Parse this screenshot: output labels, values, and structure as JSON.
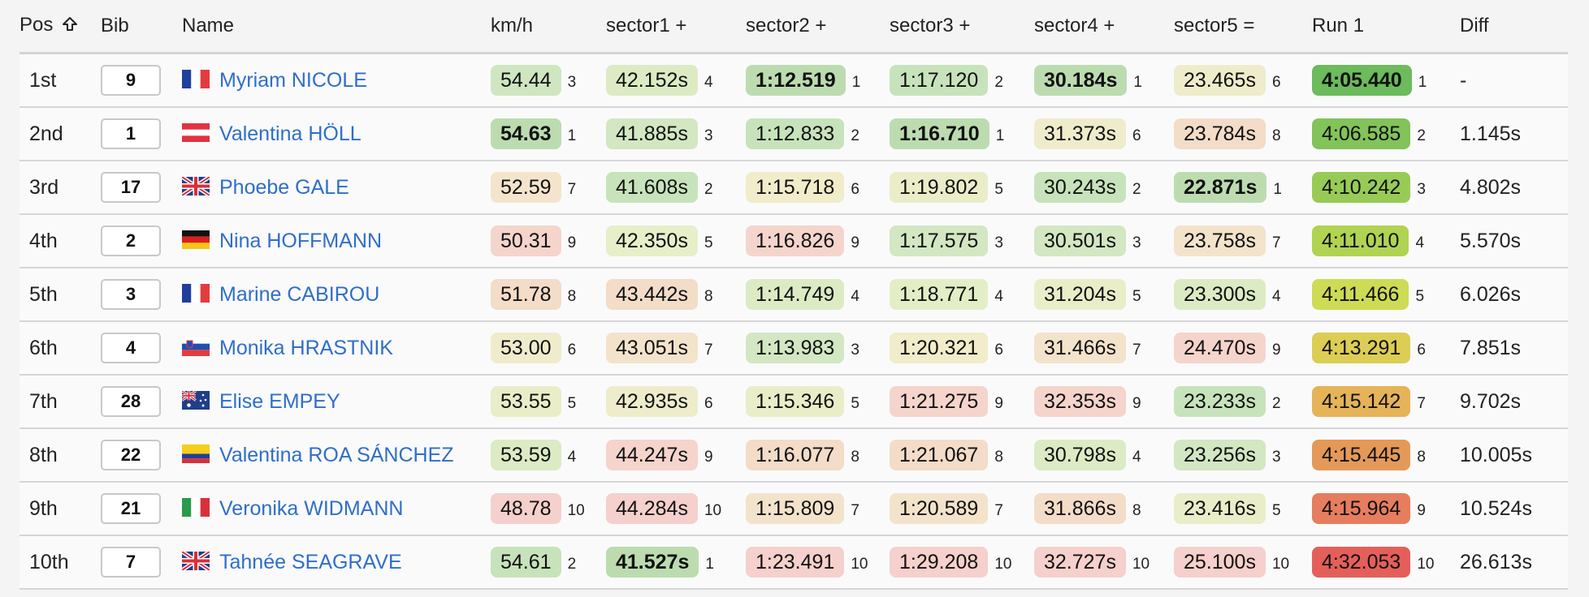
{
  "columns": [
    "Pos",
    "Bib",
    "Name",
    "km/h",
    "sector1 +",
    "sector2 +",
    "sector3 +",
    "sector4 +",
    "sector5 =",
    "Run 1",
    "Diff"
  ],
  "sort_icon": "sort-up-arrow-icon",
  "rows": [
    {
      "pos": "1st",
      "bib": "9",
      "country": "FRA",
      "name": "Myriam NICOLE",
      "cells": [
        {
          "v": "54.44",
          "r": "3",
          "c": "#cfe6c0",
          "b": false
        },
        {
          "v": "42.152s",
          "r": "4",
          "c": "#dcebc4",
          "b": false
        },
        {
          "v": "1:12.519",
          "r": "1",
          "c": "#bcdcb0",
          "b": true
        },
        {
          "v": "1:17.120",
          "r": "2",
          "c": "#c7e3bb",
          "b": false
        },
        {
          "v": "30.184s",
          "r": "1",
          "c": "#bcdcb0",
          "b": true
        },
        {
          "v": "23.465s",
          "r": "6",
          "c": "#efeccc",
          "b": false
        }
      ],
      "run": {
        "v": "4:05.440",
        "r": "1",
        "c": "#6cbb5c",
        "b": true
      },
      "diff": "-"
    },
    {
      "pos": "2nd",
      "bib": "1",
      "country": "AUT",
      "name": "Valentina HÖLL",
      "cells": [
        {
          "v": "54.63",
          "r": "1",
          "c": "#bcdcb0",
          "b": true
        },
        {
          "v": "41.885s",
          "r": "3",
          "c": "#d2e7c2",
          "b": false
        },
        {
          "v": "1:12.833",
          "r": "2",
          "c": "#c7e3bb",
          "b": false
        },
        {
          "v": "1:16.710",
          "r": "1",
          "c": "#bcdcb0",
          "b": true
        },
        {
          "v": "31.373s",
          "r": "6",
          "c": "#efeccc",
          "b": false
        },
        {
          "v": "23.784s",
          "r": "8",
          "c": "#f3dcc8",
          "b": false
        }
      ],
      "run": {
        "v": "4:06.585",
        "r": "2",
        "c": "#82c35a",
        "b": false
      },
      "diff": "1.145s"
    },
    {
      "pos": "3rd",
      "bib": "17",
      "country": "GBR",
      "name": "Phoebe GALE",
      "cells": [
        {
          "v": "52.59",
          "r": "7",
          "c": "#f4e4cc",
          "b": false
        },
        {
          "v": "41.608s",
          "r": "2",
          "c": "#c7e3bb",
          "b": false
        },
        {
          "v": "1:15.718",
          "r": "6",
          "c": "#f1ecc9",
          "b": false
        },
        {
          "v": "1:19.802",
          "r": "5",
          "c": "#ebedc9",
          "b": false
        },
        {
          "v": "30.243s",
          "r": "2",
          "c": "#c7e3bb",
          "b": false
        },
        {
          "v": "22.871s",
          "r": "1",
          "c": "#bcdcb0",
          "b": true
        }
      ],
      "run": {
        "v": "4:10.242",
        "r": "3",
        "c": "#98cb56",
        "b": false
      },
      "diff": "4.802s"
    },
    {
      "pos": "4th",
      "bib": "2",
      "country": "GER",
      "name": "Nina HOFFMANN",
      "cells": [
        {
          "v": "50.31",
          "r": "9",
          "c": "#f5d4cc",
          "b": false
        },
        {
          "v": "42.350s",
          "r": "5",
          "c": "#e6efc8",
          "b": false
        },
        {
          "v": "1:16.826",
          "r": "9",
          "c": "#f5d4cc",
          "b": false
        },
        {
          "v": "1:17.575",
          "r": "3",
          "c": "#d2e7c2",
          "b": false
        },
        {
          "v": "30.501s",
          "r": "3",
          "c": "#d2e7c2",
          "b": false
        },
        {
          "v": "23.758s",
          "r": "7",
          "c": "#f3e3cb",
          "b": false
        }
      ],
      "run": {
        "v": "4:11.010",
        "r": "4",
        "c": "#b0d352",
        "b": false
      },
      "diff": "5.570s"
    },
    {
      "pos": "5th",
      "bib": "3",
      "country": "FRA",
      "name": "Marine CABIROU",
      "cells": [
        {
          "v": "51.78",
          "r": "8",
          "c": "#f3dcc8",
          "b": false
        },
        {
          "v": "43.442s",
          "r": "8",
          "c": "#f3dcc8",
          "b": false
        },
        {
          "v": "1:14.749",
          "r": "4",
          "c": "#dcebc4",
          "b": false
        },
        {
          "v": "1:18.771",
          "r": "4",
          "c": "#e3eec7",
          "b": false
        },
        {
          "v": "31.204s",
          "r": "5",
          "c": "#e9eec8",
          "b": false
        },
        {
          "v": "23.300s",
          "r": "4",
          "c": "#dcebc4",
          "b": false
        }
      ],
      "run": {
        "v": "4:11.466",
        "r": "5",
        "c": "#cddb55",
        "b": false
      },
      "diff": "6.026s"
    },
    {
      "pos": "6th",
      "bib": "4",
      "country": "SLO",
      "name": "Monika HRASTNIK",
      "cells": [
        {
          "v": "53.00",
          "r": "6",
          "c": "#efeccc",
          "b": false
        },
        {
          "v": "43.051s",
          "r": "7",
          "c": "#f3e3cb",
          "b": false
        },
        {
          "v": "1:13.983",
          "r": "3",
          "c": "#d2e7c2",
          "b": false
        },
        {
          "v": "1:20.321",
          "r": "6",
          "c": "#f1ecc9",
          "b": false
        },
        {
          "v": "31.466s",
          "r": "7",
          "c": "#f3e3cb",
          "b": false
        },
        {
          "v": "24.470s",
          "r": "9",
          "c": "#f5d4cc",
          "b": false
        }
      ],
      "run": {
        "v": "4:13.291",
        "r": "6",
        "c": "#dccd55",
        "b": false
      },
      "diff": "7.851s"
    },
    {
      "pos": "7th",
      "bib": "28",
      "country": "AUS",
      "name": "Elise EMPEY",
      "cells": [
        {
          "v": "53.55",
          "r": "5",
          "c": "#e9eec8",
          "b": false
        },
        {
          "v": "42.935s",
          "r": "6",
          "c": "#efeccc",
          "b": false
        },
        {
          "v": "1:15.346",
          "r": "5",
          "c": "#e9eec8",
          "b": false
        },
        {
          "v": "1:21.275",
          "r": "9",
          "c": "#f5d4cc",
          "b": false
        },
        {
          "v": "32.353s",
          "r": "9",
          "c": "#f5d4cc",
          "b": false
        },
        {
          "v": "23.233s",
          "r": "2",
          "c": "#c7e3bb",
          "b": false
        }
      ],
      "run": {
        "v": "4:15.142",
        "r": "7",
        "c": "#e5b358",
        "b": false
      },
      "diff": "9.702s"
    },
    {
      "pos": "8th",
      "bib": "22",
      "country": "COL",
      "name": "Valentina ROA SÁNCHEZ",
      "cells": [
        {
          "v": "53.59",
          "r": "4",
          "c": "#dcebc4",
          "b": false
        },
        {
          "v": "44.247s",
          "r": "9",
          "c": "#f5d4cc",
          "b": false
        },
        {
          "v": "1:16.077",
          "r": "8",
          "c": "#f3dcc8",
          "b": false
        },
        {
          "v": "1:21.067",
          "r": "8",
          "c": "#f3dcc8",
          "b": false
        },
        {
          "v": "30.798s",
          "r": "4",
          "c": "#dcebc4",
          "b": false
        },
        {
          "v": "23.256s",
          "r": "3",
          "c": "#d2e7c2",
          "b": false
        }
      ],
      "run": {
        "v": "4:15.445",
        "r": "8",
        "c": "#e49958",
        "b": false
      },
      "diff": "10.005s"
    },
    {
      "pos": "9th",
      "bib": "21",
      "country": "ITA",
      "name": "Veronika WIDMANN",
      "cells": [
        {
          "v": "48.78",
          "r": "10",
          "c": "#f5d0cc",
          "b": false
        },
        {
          "v": "44.284s",
          "r": "10",
          "c": "#f5d0cc",
          "b": false
        },
        {
          "v": "1:15.809",
          "r": "7",
          "c": "#f3e3cb",
          "b": false
        },
        {
          "v": "1:20.589",
          "r": "7",
          "c": "#f3e3cb",
          "b": false
        },
        {
          "v": "31.866s",
          "r": "8",
          "c": "#f3dcc8",
          "b": false
        },
        {
          "v": "23.416s",
          "r": "5",
          "c": "#e9eec8",
          "b": false
        }
      ],
      "run": {
        "v": "4:15.964",
        "r": "9",
        "c": "#e67d5e",
        "b": false
      },
      "diff": "10.524s"
    },
    {
      "pos": "10th",
      "bib": "7",
      "country": "GBR",
      "name": "Tahnée SEAGRAVE",
      "cells": [
        {
          "v": "54.61",
          "r": "2",
          "c": "#c7e3bb",
          "b": false
        },
        {
          "v": "41.527s",
          "r": "1",
          "c": "#bcdcb0",
          "b": true
        },
        {
          "v": "1:23.491",
          "r": "10",
          "c": "#f5d0cc",
          "b": false
        },
        {
          "v": "1:29.208",
          "r": "10",
          "c": "#f5d0cc",
          "b": false
        },
        {
          "v": "32.727s",
          "r": "10",
          "c": "#f5d0cc",
          "b": false
        },
        {
          "v": "25.100s",
          "r": "10",
          "c": "#f5d0cc",
          "b": false
        }
      ],
      "run": {
        "v": "4:32.053",
        "r": "10",
        "c": "#e55f5a",
        "b": false
      },
      "diff": "26.613s"
    }
  ]
}
